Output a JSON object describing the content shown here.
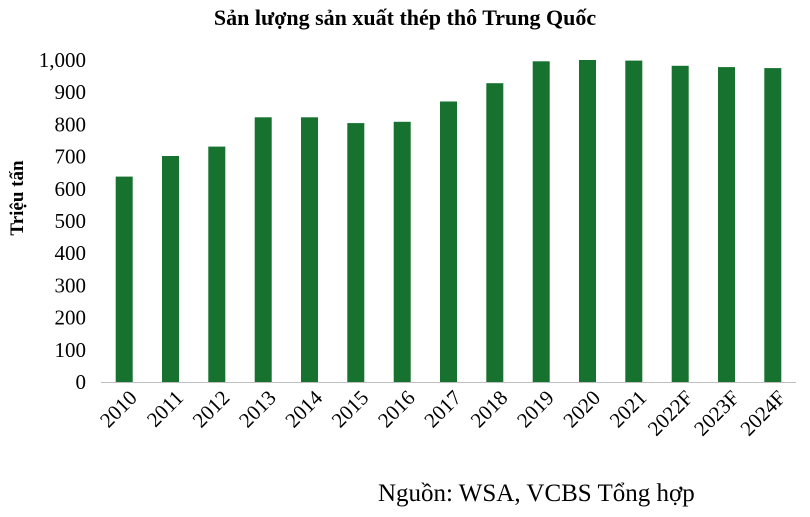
{
  "chart_data": {
    "type": "bar",
    "title": "Sản lượng sản xuất thép thô Trung Quốc",
    "ylabel": "Triệu tấn",
    "xlabel": "",
    "categories": [
      "2010",
      "2011",
      "2012",
      "2013",
      "2014",
      "2015",
      "2016",
      "2017",
      "2018",
      "2019",
      "2020",
      "2021",
      "2022F",
      "2023F",
      "2024F"
    ],
    "values": [
      638,
      702,
      731,
      822,
      822,
      804,
      808,
      871,
      928,
      996,
      1000,
      998,
      982,
      978,
      975
    ],
    "ylim": [
      0,
      1000
    ],
    "yticks": [
      0,
      100,
      200,
      300,
      400,
      500,
      600,
      700,
      800,
      900,
      1000
    ],
    "ytick_labels": [
      "0",
      "100",
      "200",
      "300",
      "400",
      "500",
      "600",
      "700",
      "800",
      "900",
      "1,000"
    ],
    "grid": false,
    "legend": "none",
    "bar_color": "#17712f"
  },
  "source": "Nguồn: WSA, VCBS Tổng hợp"
}
